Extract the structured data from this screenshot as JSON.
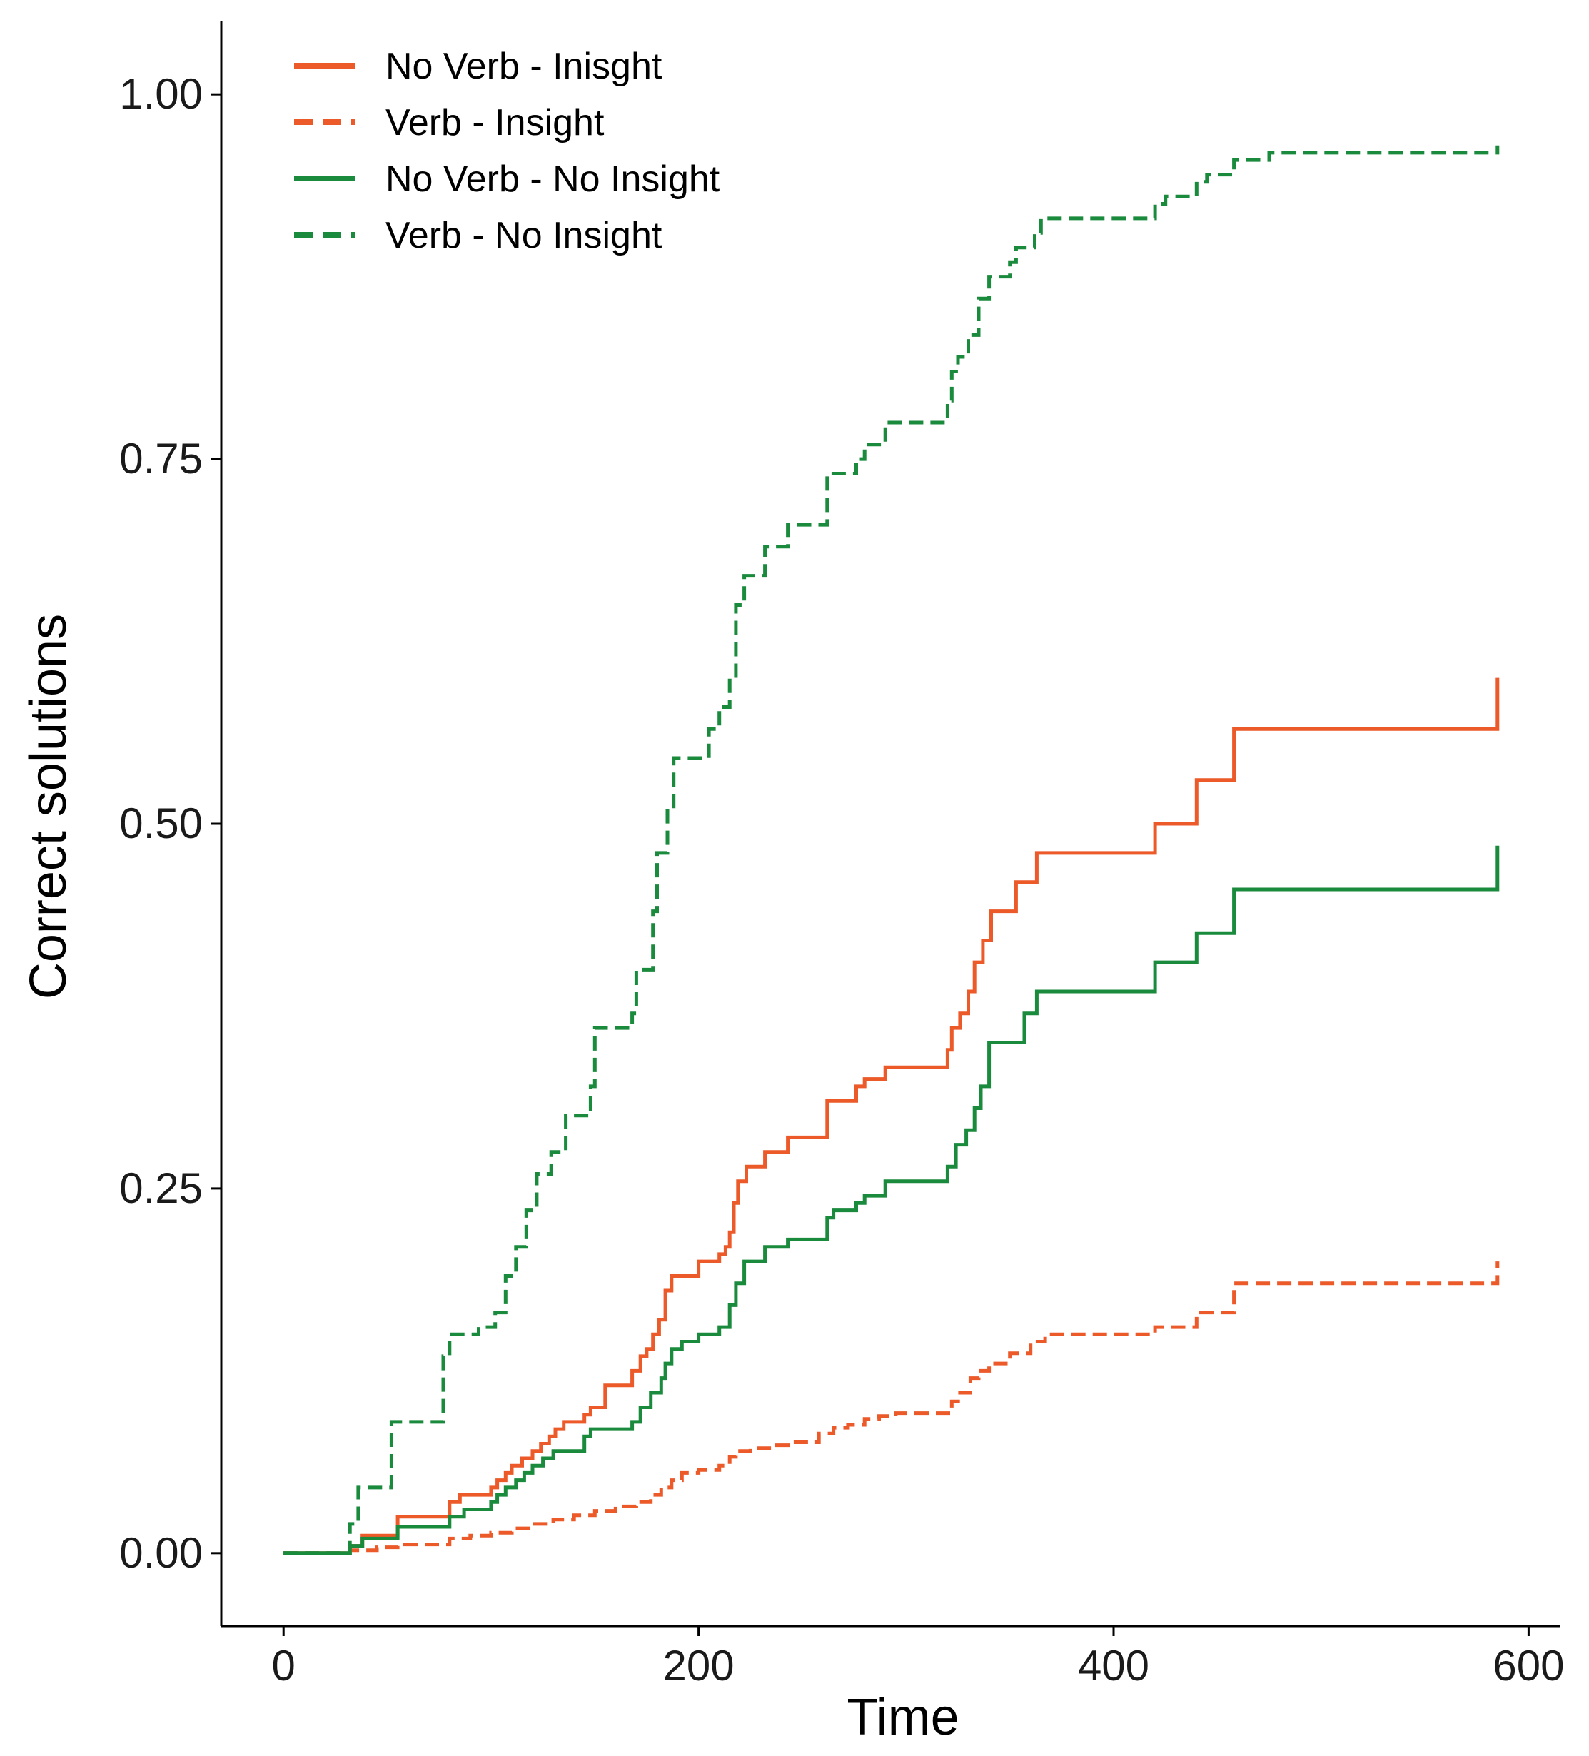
{
  "chart_data": {
    "type": "line",
    "xlabel": "Time",
    "ylabel": "Correct solutions",
    "xlim": [
      -30,
      615
    ],
    "ylim": [
      -0.05,
      1.05
    ],
    "xticks": [
      0,
      200,
      400,
      600
    ],
    "xtick_labels": [
      "0",
      "200",
      "400",
      "600"
    ],
    "yticks": [
      0,
      0.25,
      0.5,
      0.75,
      1.0
    ],
    "ytick_labels": [
      "0.00",
      "0.25",
      "0.50",
      "0.75",
      "1.00"
    ],
    "legend_position": "top-left",
    "series": [
      {
        "name": "No Verb - Inisght",
        "color": "#ec5a2a",
        "dash": "solid",
        "x": [
          0,
          32,
          38,
          55,
          80,
          85,
          100,
          103,
          107,
          110,
          115,
          120,
          124,
          128,
          131,
          135,
          145,
          148,
          155,
          168,
          172,
          175,
          178,
          181,
          184,
          187,
          192,
          200,
          210,
          213,
          215,
          217,
          219,
          223,
          232,
          243,
          262,
          265,
          276,
          280,
          290,
          320,
          322,
          326,
          330,
          333,
          337,
          341,
          353,
          357,
          363,
          367,
          420,
          440,
          458,
          585
        ],
        "y": [
          0,
          0.005,
          0.012,
          0.025,
          0.035,
          0.04,
          0.045,
          0.05,
          0.055,
          0.06,
          0.065,
          0.07,
          0.075,
          0.08,
          0.085,
          0.09,
          0.095,
          0.1,
          0.115,
          0.125,
          0.135,
          0.14,
          0.15,
          0.16,
          0.18,
          0.19,
          0.19,
          0.2,
          0.205,
          0.21,
          0.22,
          0.24,
          0.255,
          0.265,
          0.275,
          0.285,
          0.31,
          0.31,
          0.32,
          0.325,
          0.333,
          0.345,
          0.36,
          0.37,
          0.385,
          0.405,
          0.42,
          0.44,
          0.46,
          0.46,
          0.48,
          0.48,
          0.5,
          0.53,
          0.565,
          0.6
        ]
      },
      {
        "name": "Verb - Insight",
        "color": "#ec5a2a",
        "dash": "dashed",
        "x": [
          0,
          32,
          45,
          55,
          80,
          90,
          100,
          110,
          120,
          130,
          140,
          150,
          160,
          170,
          177,
          182,
          187,
          192,
          200,
          210,
          215,
          218,
          225,
          235,
          245,
          258,
          265,
          272,
          280,
          287,
          295,
          322,
          326,
          331,
          335,
          340,
          350,
          360,
          367,
          420,
          440,
          458,
          585
        ],
        "y": [
          0,
          0.002,
          0.004,
          0.006,
          0.01,
          0.012,
          0.014,
          0.017,
          0.02,
          0.023,
          0.026,
          0.029,
          0.032,
          0.035,
          0.04,
          0.045,
          0.05,
          0.055,
          0.057,
          0.06,
          0.066,
          0.07,
          0.072,
          0.074,
          0.076,
          0.082,
          0.086,
          0.088,
          0.092,
          0.094,
          0.096,
          0.104,
          0.11,
          0.12,
          0.125,
          0.13,
          0.137,
          0.145,
          0.15,
          0.155,
          0.165,
          0.185,
          0.2
        ]
      },
      {
        "name": "No Verb - No Insight",
        "color": "#1a8a3c",
        "dash": "solid",
        "x": [
          0,
          32,
          38,
          55,
          80,
          87,
          100,
          103,
          107,
          112,
          116,
          120,
          125,
          130,
          145,
          148,
          168,
          172,
          177,
          182,
          184,
          187,
          192,
          200,
          210,
          215,
          218,
          222,
          232,
          243,
          262,
          265,
          276,
          280,
          290,
          320,
          324,
          329,
          333,
          336,
          340,
          353,
          357,
          363,
          420,
          440,
          458,
          585
        ],
        "y": [
          0,
          0.005,
          0.01,
          0.018,
          0.025,
          0.03,
          0.035,
          0.04,
          0.045,
          0.05,
          0.055,
          0.06,
          0.065,
          0.07,
          0.08,
          0.085,
          0.09,
          0.1,
          0.11,
          0.12,
          0.13,
          0.14,
          0.145,
          0.15,
          0.155,
          0.17,
          0.185,
          0.2,
          0.21,
          0.215,
          0.23,
          0.235,
          0.24,
          0.245,
          0.255,
          0.265,
          0.28,
          0.29,
          0.305,
          0.32,
          0.35,
          0.35,
          0.37,
          0.385,
          0.405,
          0.425,
          0.455,
          0.485
        ]
      },
      {
        "name": "Verb - No Insight",
        "color": "#1a8a3c",
        "dash": "dashed",
        "x": [
          0,
          32,
          36,
          52,
          77,
          80,
          94,
          102,
          107,
          112,
          117,
          122,
          129,
          136,
          148,
          150,
          168,
          170,
          178,
          180,
          185,
          188,
          205,
          210,
          215,
          218,
          222,
          232,
          243,
          262,
          265,
          276,
          280,
          290,
          320,
          322,
          325,
          330,
          335,
          340,
          350,
          353,
          362,
          365,
          420,
          425,
          440,
          445,
          458,
          475,
          585
        ],
        "y": [
          0,
          0.02,
          0.045,
          0.09,
          0.135,
          0.15,
          0.155,
          0.165,
          0.19,
          0.21,
          0.235,
          0.26,
          0.275,
          0.3,
          0.32,
          0.36,
          0.37,
          0.4,
          0.44,
          0.48,
          0.51,
          0.545,
          0.565,
          0.58,
          0.6,
          0.65,
          0.67,
          0.69,
          0.705,
          0.74,
          0.74,
          0.75,
          0.76,
          0.775,
          0.79,
          0.81,
          0.82,
          0.835,
          0.86,
          0.875,
          0.885,
          0.895,
          0.905,
          0.915,
          0.925,
          0.93,
          0.94,
          0.945,
          0.955,
          0.96,
          0.965
        ]
      }
    ]
  }
}
